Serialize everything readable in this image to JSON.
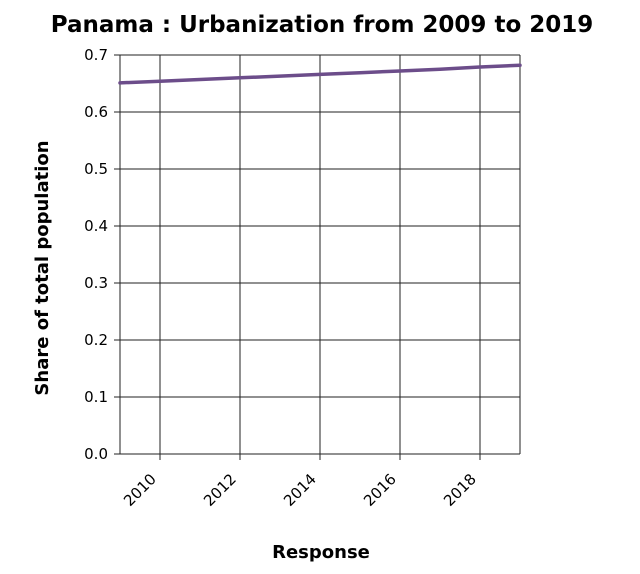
{
  "chart_data": {
    "type": "line",
    "title": "Panama : Urbanization from 2009 to 2019",
    "xlabel": "Response",
    "ylabel": "Share of total population",
    "xlim": [
      2009,
      2019
    ],
    "ylim": [
      0,
      0.7
    ],
    "x_ticks": [
      "2010",
      "2012",
      "2014",
      "2016",
      "2018"
    ],
    "y_ticks": [
      "0.0",
      "0.1",
      "0.2",
      "0.3",
      "0.4",
      "0.5",
      "0.6",
      "0.7"
    ],
    "grid": true,
    "series": [
      {
        "color": "#6c4d8a",
        "x": [
          2009,
          2010,
          2011,
          2012,
          2013,
          2014,
          2015,
          2016,
          2017,
          2018,
          2019
        ],
        "y": [
          0.651,
          0.654,
          0.657,
          0.66,
          0.663,
          0.666,
          0.669,
          0.672,
          0.675,
          0.679,
          0.682
        ]
      }
    ]
  }
}
